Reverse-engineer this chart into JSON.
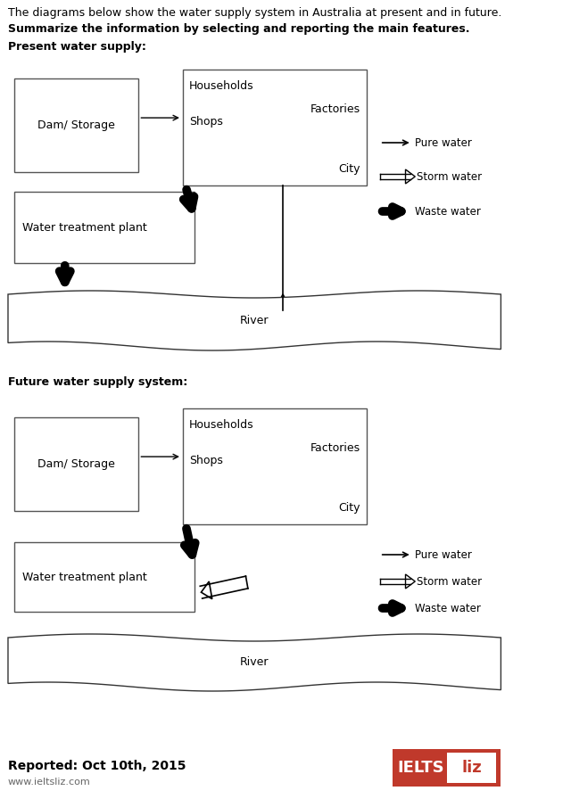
{
  "title1": "The diagrams below show the water supply system in Australia at present and in future.",
  "title2": "Summarize the information by selecting and reporting the main features.",
  "section1": "Present water supply:",
  "section2": "Future water supply system:",
  "reported": "Reported: Oct 10th, 2015",
  "website": "www.ieltsliz.com",
  "bg_color": "#ffffff",
  "legend_pure": "Pure water",
  "legend_storm": "Storm water",
  "legend_waste": "Waste water",
  "ielts_bg": "#c0392b"
}
